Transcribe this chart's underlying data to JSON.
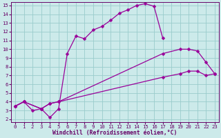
{
  "bg_color": "#cceaea",
  "grid_color": "#99cccc",
  "line_color": "#990099",
  "xlim_min": -0.5,
  "xlim_max": 23.5,
  "ylim_min": 1.7,
  "ylim_max": 15.4,
  "xticks": [
    0,
    1,
    2,
    3,
    4,
    5,
    6,
    7,
    8,
    9,
    10,
    11,
    12,
    13,
    14,
    15,
    16,
    17,
    18,
    19,
    20,
    21,
    22,
    23
  ],
  "yticks": [
    2,
    3,
    4,
    5,
    6,
    7,
    8,
    9,
    10,
    11,
    12,
    13,
    14,
    15
  ],
  "line1_x": [
    0,
    1,
    2,
    3,
    4,
    5,
    6,
    7,
    8,
    9,
    10,
    11,
    12,
    13,
    14,
    15,
    16,
    17
  ],
  "line1_y": [
    3.5,
    4.0,
    3.0,
    3.2,
    2.2,
    3.2,
    9.5,
    11.5,
    11.2,
    12.2,
    12.6,
    13.3,
    14.1,
    14.5,
    15.0,
    15.2,
    14.9,
    11.3
  ],
  "line2_x": [
    0,
    1,
    3,
    4,
    5,
    17,
    19,
    20,
    21,
    22,
    23
  ],
  "line2_y": [
    3.5,
    4.0,
    3.2,
    3.8,
    4.0,
    9.5,
    10.0,
    10.0,
    9.8,
    8.5,
    7.2
  ],
  "line3_x": [
    0,
    1,
    3,
    4,
    5,
    17,
    19,
    20,
    21,
    22,
    23
  ],
  "line3_y": [
    3.5,
    4.0,
    3.2,
    3.8,
    4.0,
    6.8,
    7.2,
    7.5,
    7.5,
    7.0,
    7.2
  ],
  "xlabel": "Windchill (Refroidissement éolien,°C)",
  "marker_size": 2.5,
  "linewidth": 0.9,
  "xlabel_fontsize": 5.8,
  "tick_fontsize": 5.2
}
